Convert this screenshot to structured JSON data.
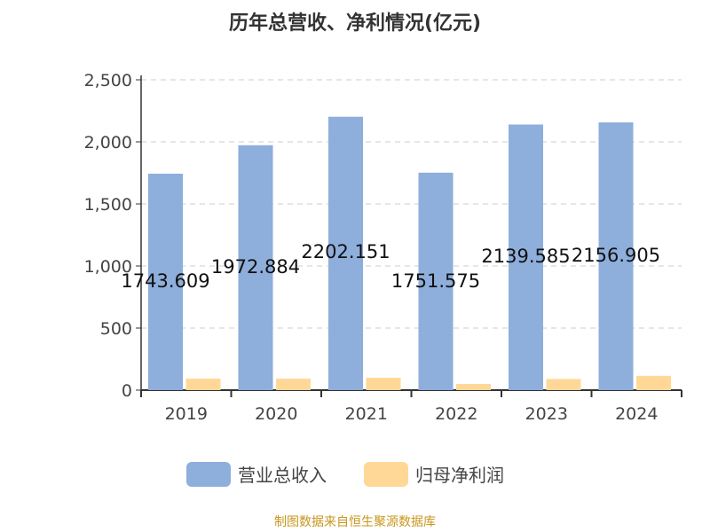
{
  "chart_data": {
    "type": "bar",
    "title": "历年总营收、净利情况(亿元)",
    "categories": [
      "2019",
      "2020",
      "2021",
      "2022",
      "2023",
      "2024"
    ],
    "series": [
      {
        "name": "营业总收入",
        "color": "#8eaedb",
        "values": [
          1743.609,
          1972.884,
          2202.151,
          1751.575,
          2139.585,
          2156.905
        ],
        "labels": [
          "1743.609",
          "1972.884",
          "2202.151",
          "1751.575",
          "2139.585",
          "2156.905"
        ]
      },
      {
        "name": "归母净利润",
        "color": "#ffd898",
        "values": [
          93,
          93,
          100,
          50,
          90,
          115
        ]
      }
    ],
    "ylim": [
      0,
      2500
    ],
    "yticks": [
      "0",
      "500",
      "1,000",
      "1,500",
      "2,000",
      "2,500"
    ],
    "grid": true,
    "legend": "bottom"
  },
  "source": "制图数据来自恒生聚源数据库"
}
